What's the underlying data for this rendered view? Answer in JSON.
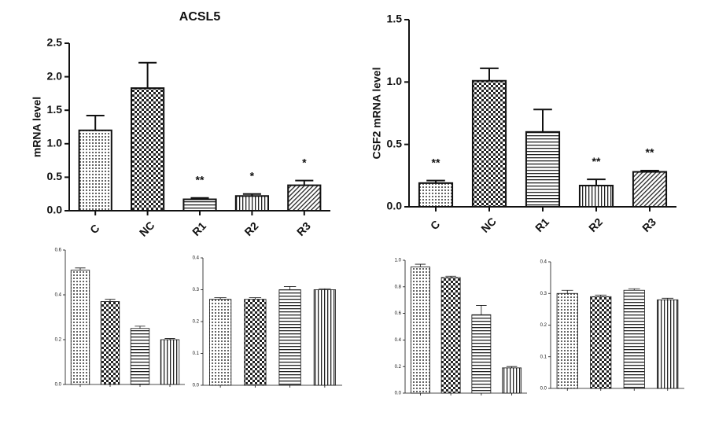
{
  "chart_data": [
    {
      "type": "bar",
      "title": "ACSL5",
      "y_label": "mRNA level",
      "categories": [
        "C",
        "NC",
        "R1",
        "R2",
        "R3"
      ],
      "values": [
        1.2,
        1.83,
        0.17,
        0.22,
        0.38
      ],
      "errors": [
        0.22,
        0.38,
        0.02,
        0.03,
        0.07
      ],
      "annotations": [
        null,
        null,
        "**",
        "*",
        "*"
      ],
      "patterns": [
        "dots",
        "checker",
        "hlines",
        "vlines",
        "diagonal"
      ],
      "color": "#111111",
      "ylim": [
        0,
        2.5
      ],
      "yticks": [
        {
          "value": 0,
          "label": "0.0"
        },
        0.5,
        {
          "value": 1,
          "label": "1.0"
        },
        1.5,
        {
          "value": 2,
          "label": "2.0"
        },
        2.5
      ]
    },
    {
      "type": "bar",
      "y_label": "CSF2 mRNA level",
      "categories": [
        "C",
        "NC",
        "R1",
        "R2",
        "R3"
      ],
      "values": [
        0.19,
        1.01,
        0.6,
        0.17,
        0.28
      ],
      "errors": [
        0.02,
        0.1,
        0.18,
        0.05,
        0.01
      ],
      "annotations": [
        "**",
        null,
        null,
        "**",
        "**"
      ],
      "patterns": [
        "dots",
        "checker",
        "hlines",
        "vlines",
        "diagonal"
      ],
      "color": "#111111",
      "ylim": [
        0,
        1.5
      ],
      "yticks": [
        {
          "value": 0,
          "label": "0.0"
        },
        0.5,
        {
          "value": 1,
          "label": "1.0"
        },
        1.5
      ]
    },
    {
      "type": "bar",
      "categories": [
        null,
        null,
        null,
        null
      ],
      "values": [
        0.51,
        0.37,
        0.25,
        0.2
      ],
      "errors": [
        0.01,
        0.01,
        0.01,
        0.005
      ],
      "patterns": [
        "dots",
        "checker",
        "hlines",
        "vlines"
      ],
      "color": "#111111",
      "ylim": [
        0,
        0.6
      ],
      "yticks": [
        {
          "value": 0,
          "label": "0.0"
        },
        0.2,
        0.4,
        0.6
      ]
    },
    {
      "type": "bar",
      "categories": [
        null,
        null,
        null,
        null
      ],
      "values": [
        0.27,
        0.27,
        0.3,
        0.3
      ],
      "errors": [
        0.005,
        0.005,
        0.01,
        0.003
      ],
      "patterns": [
        "dots",
        "checker",
        "hlines",
        "vlines"
      ],
      "color": "#111111",
      "ylim": [
        0,
        0.4
      ],
      "yticks": [
        {
          "value": 0,
          "label": "0.0"
        },
        0.1,
        0.2,
        0.3,
        0.4
      ]
    },
    {
      "type": "bar",
      "categories": [
        null,
        null,
        null,
        null
      ],
      "values": [
        0.95,
        0.87,
        0.59,
        0.19
      ],
      "errors": [
        0.02,
        0.01,
        0.07,
        0.01
      ],
      "patterns": [
        "dots",
        "checker",
        "hlines",
        "vlines"
      ],
      "color": "#111111",
      "ylim": [
        0,
        1
      ],
      "yticks": [
        {
          "value": 0,
          "label": "0.0"
        },
        0.2,
        0.4,
        0.6,
        0.8,
        {
          "value": 1,
          "label": "1.0"
        }
      ]
    },
    {
      "type": "bar",
      "categories": [
        null,
        null,
        null,
        null
      ],
      "values": [
        0.3,
        0.29,
        0.31,
        0.28
      ],
      "errors": [
        0.01,
        0.005,
        0.005,
        0.005
      ],
      "patterns": [
        "dots",
        "checker",
        "hlines",
        "vlines"
      ],
      "color": "#111111",
      "ylim": [
        0,
        0.4
      ],
      "yticks": [
        {
          "value": 0,
          "label": "0.0"
        },
        0.1,
        0.2,
        0.3,
        0.4
      ]
    }
  ]
}
